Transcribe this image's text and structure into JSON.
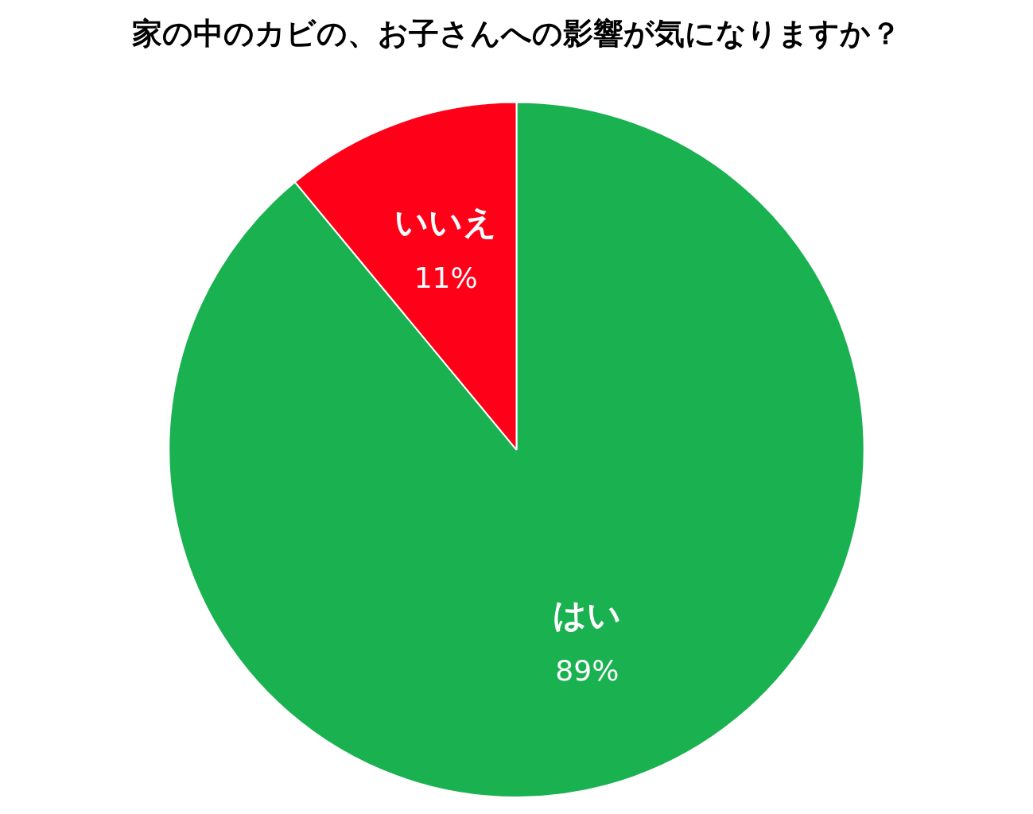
{
  "chart_data": {
    "type": "pie",
    "title": "家の中のカビの、お子さんへの影響が気になりますか？",
    "categories": [
      "はい",
      "いいえ"
    ],
    "values": [
      89,
      11
    ],
    "value_labels": [
      "89%",
      "11%"
    ],
    "colors": [
      "#1ab150",
      "#ff0019"
    ],
    "legend": false
  }
}
